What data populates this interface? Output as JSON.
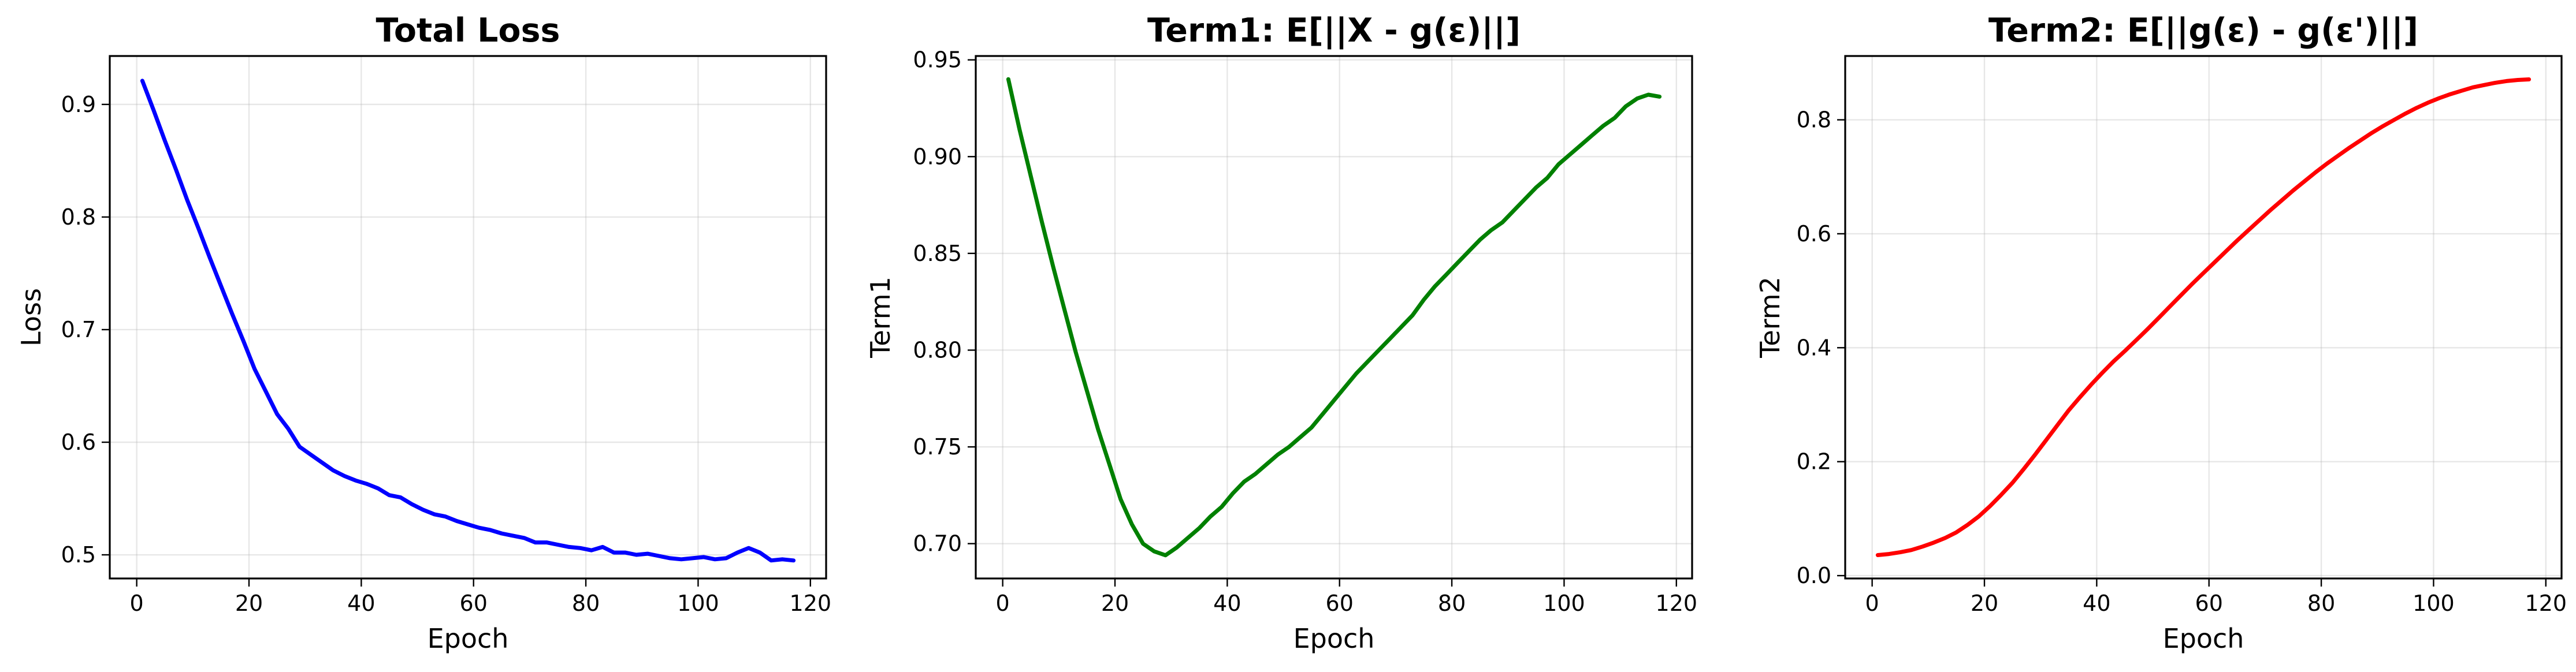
{
  "chart_data": [
    {
      "type": "line",
      "title": "Total Loss",
      "xlabel": "Epoch",
      "ylabel": "Loss",
      "xlim": [
        -4.8,
        122.8
      ],
      "ylim": [
        0.479,
        0.943
      ],
      "xticks": [
        0,
        20,
        40,
        60,
        80,
        100,
        120
      ],
      "yticks": [
        0.5,
        0.6,
        0.7,
        0.8,
        0.9
      ],
      "xtick_labels": [
        "0",
        "20",
        "40",
        "60",
        "80",
        "100",
        "120"
      ],
      "ytick_labels": [
        "0.5",
        "0.6",
        "0.7",
        "0.8",
        "0.9"
      ],
      "grid": true,
      "series": [
        {
          "color": "#0000ff",
          "x": [
            1,
            3,
            5,
            7,
            9,
            11,
            13,
            15,
            17,
            19,
            21,
            23,
            25,
            27,
            29,
            31,
            33,
            35,
            37,
            39,
            41,
            43,
            45,
            47,
            49,
            51,
            53,
            55,
            57,
            59,
            61,
            63,
            65,
            67,
            69,
            71,
            73,
            75,
            77,
            79,
            81,
            83,
            85,
            87,
            89,
            91,
            93,
            95,
            97,
            99,
            101,
            103,
            105,
            107,
            109,
            111,
            113,
            115,
            117
          ],
          "y": [
            0.921,
            0.895,
            0.868,
            0.842,
            0.815,
            0.79,
            0.764,
            0.739,
            0.714,
            0.69,
            0.665,
            0.645,
            0.625,
            0.612,
            0.596,
            0.589,
            0.582,
            0.575,
            0.57,
            0.566,
            0.563,
            0.559,
            0.553,
            0.551,
            0.545,
            0.54,
            0.536,
            0.534,
            0.53,
            0.527,
            0.524,
            0.522,
            0.519,
            0.517,
            0.515,
            0.511,
            0.511,
            0.509,
            0.507,
            0.506,
            0.504,
            0.507,
            0.502,
            0.502,
            0.5,
            0.501,
            0.499,
            0.497,
            0.496,
            0.497,
            0.498,
            0.496,
            0.497,
            0.502,
            0.506,
            0.502,
            0.495,
            0.496,
            0.495
          ]
        }
      ]
    },
    {
      "type": "line",
      "title": "Term1: E[||X - g(ε)||]",
      "xlabel": "Epoch",
      "ylabel": "Term1",
      "xlim": [
        -4.8,
        122.8
      ],
      "ylim": [
        0.682,
        0.952
      ],
      "xticks": [
        0,
        20,
        40,
        60,
        80,
        100,
        120
      ],
      "yticks": [
        0.7,
        0.75,
        0.8,
        0.85,
        0.9,
        0.95
      ],
      "xtick_labels": [
        "0",
        "20",
        "40",
        "60",
        "80",
        "100",
        "120"
      ],
      "ytick_labels": [
        "0.70",
        "0.75",
        "0.80",
        "0.85",
        "0.90",
        "0.95"
      ],
      "grid": true,
      "series": [
        {
          "color": "#008000",
          "x": [
            1,
            3,
            5,
            7,
            9,
            11,
            13,
            15,
            17,
            19,
            21,
            23,
            25,
            27,
            29,
            31,
            33,
            35,
            37,
            39,
            41,
            43,
            45,
            47,
            49,
            51,
            53,
            55,
            57,
            59,
            61,
            63,
            65,
            67,
            69,
            71,
            73,
            75,
            77,
            79,
            81,
            83,
            85,
            87,
            89,
            91,
            93,
            95,
            97,
            99,
            101,
            103,
            105,
            107,
            109,
            111,
            113,
            115,
            117
          ],
          "y": [
            0.94,
            0.914,
            0.89,
            0.866,
            0.843,
            0.821,
            0.799,
            0.779,
            0.759,
            0.741,
            0.723,
            0.71,
            0.7,
            0.696,
            0.694,
            0.698,
            0.703,
            0.708,
            0.714,
            0.719,
            0.726,
            0.732,
            0.736,
            0.741,
            0.746,
            0.75,
            0.755,
            0.76,
            0.767,
            0.774,
            0.781,
            0.788,
            0.794,
            0.8,
            0.806,
            0.812,
            0.818,
            0.826,
            0.833,
            0.839,
            0.845,
            0.851,
            0.857,
            0.862,
            0.866,
            0.872,
            0.878,
            0.884,
            0.889,
            0.896,
            0.901,
            0.906,
            0.911,
            0.916,
            0.92,
            0.926,
            0.93,
            0.932,
            0.931
          ]
        }
      ]
    },
    {
      "type": "line",
      "title": "Term2: E[||g(ε) - g(ε')||]",
      "xlabel": "Epoch",
      "ylabel": "Term2",
      "xlim": [
        -4.8,
        122.8
      ],
      "ylim": [
        -0.005,
        0.912
      ],
      "xticks": [
        0,
        20,
        40,
        60,
        80,
        100,
        120
      ],
      "yticks": [
        0.0,
        0.2,
        0.4,
        0.6,
        0.8
      ],
      "xtick_labels": [
        "0",
        "20",
        "40",
        "60",
        "80",
        "100",
        "120"
      ],
      "ytick_labels": [
        "0.0",
        "0.2",
        "0.4",
        "0.6",
        "0.8"
      ],
      "grid": true,
      "series": [
        {
          "color": "#ff0000",
          "x": [
            1,
            3,
            5,
            7,
            9,
            11,
            13,
            15,
            17,
            19,
            21,
            23,
            25,
            27,
            29,
            31,
            33,
            35,
            37,
            39,
            41,
            43,
            45,
            47,
            49,
            51,
            53,
            55,
            57,
            59,
            61,
            63,
            65,
            67,
            69,
            71,
            73,
            75,
            77,
            79,
            81,
            83,
            85,
            87,
            89,
            91,
            93,
            95,
            97,
            99,
            101,
            103,
            105,
            107,
            109,
            111,
            113,
            115,
            117
          ],
          "y": [
            0.036,
            0.038,
            0.041,
            0.045,
            0.051,
            0.058,
            0.066,
            0.076,
            0.089,
            0.104,
            0.122,
            0.142,
            0.163,
            0.187,
            0.212,
            0.238,
            0.264,
            0.29,
            0.313,
            0.335,
            0.356,
            0.376,
            0.394,
            0.413,
            0.432,
            0.452,
            0.472,
            0.492,
            0.512,
            0.531,
            0.55,
            0.569,
            0.588,
            0.606,
            0.624,
            0.642,
            0.659,
            0.676,
            0.692,
            0.708,
            0.723,
            0.737,
            0.751,
            0.764,
            0.777,
            0.789,
            0.8,
            0.811,
            0.821,
            0.83,
            0.838,
            0.845,
            0.851,
            0.857,
            0.861,
            0.865,
            0.868,
            0.87,
            0.871
          ]
        }
      ]
    }
  ]
}
